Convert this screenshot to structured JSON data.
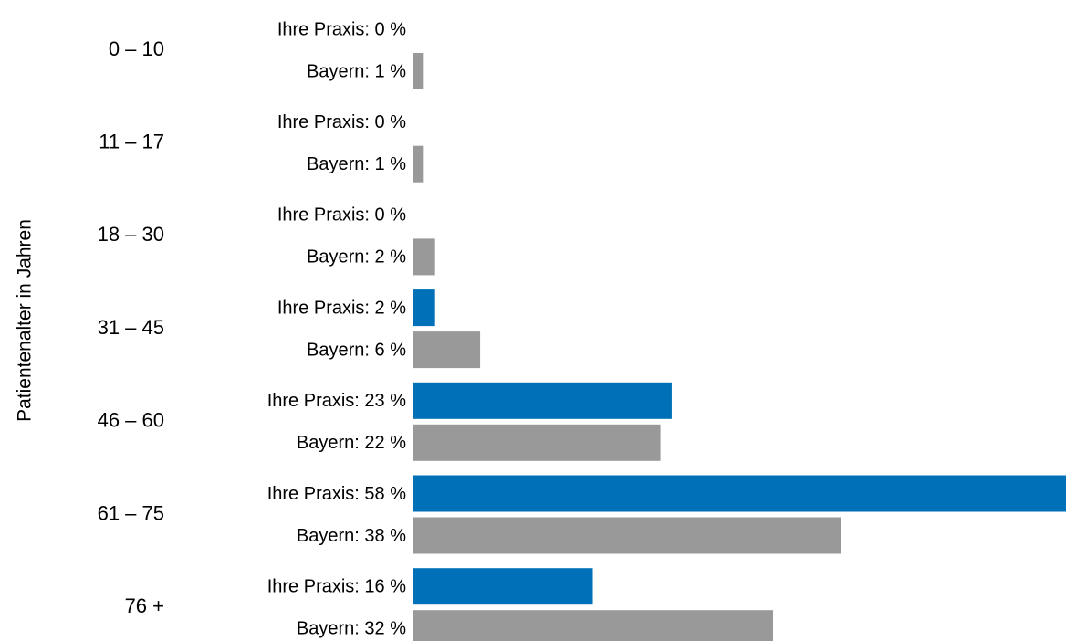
{
  "chart_data": {
    "type": "bar",
    "orientation": "horizontal",
    "y_axis_label": "Patientenalter in Jahren",
    "categories": [
      "0 – 10",
      "11 – 17",
      "18 – 30",
      "31 – 45",
      "46 – 60",
      "61 – 75",
      "76 +"
    ],
    "series": [
      {
        "name": "Ihre Praxis",
        "color": "#0070b8",
        "values": [
          0,
          0,
          0,
          2,
          23,
          58,
          16
        ],
        "value_labels": [
          "Ihre Praxis: 0 %",
          "Ihre Praxis: 0 %",
          "Ihre Praxis: 0 %",
          "Ihre Praxis: 2 %",
          "Ihre Praxis: 23 %",
          "Ihre Praxis: 58 %",
          "Ihre Praxis: 16 %"
        ]
      },
      {
        "name": "Bayern",
        "color": "#999999",
        "values": [
          1,
          1,
          2,
          6,
          22,
          38,
          32
        ],
        "value_labels": [
          "Bayern: 1 %",
          "Bayern: 1 %",
          "Bayern: 2 %",
          "Bayern: 6 %",
          "Bayern: 22 %",
          "Bayern: 38 %",
          "Bayern: 32 %"
        ]
      }
    ],
    "xlim": [
      0,
      58
    ],
    "grid": false
  }
}
